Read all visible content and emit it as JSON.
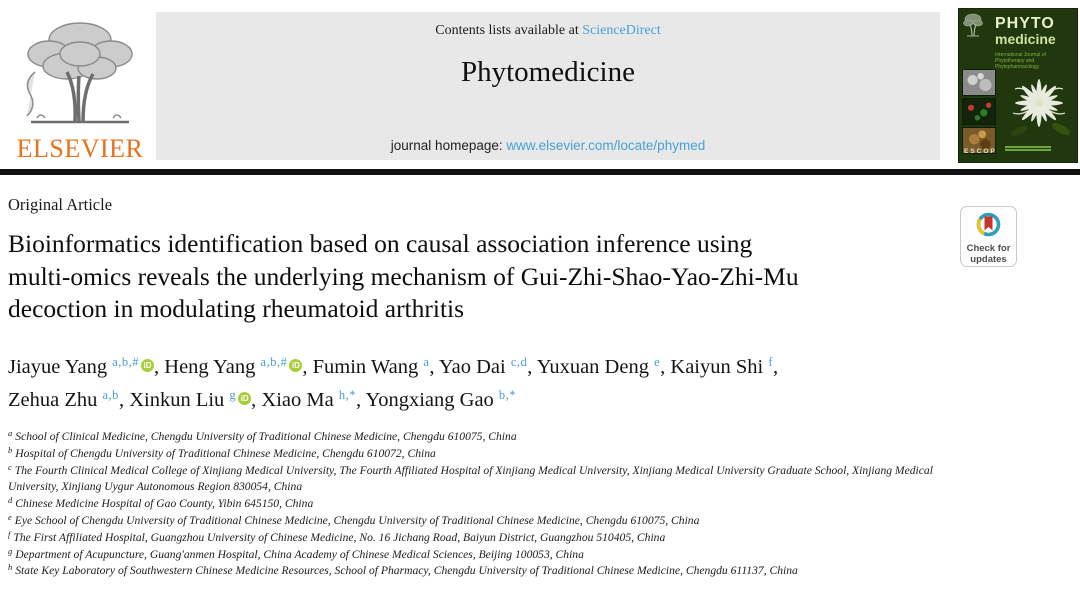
{
  "header": {
    "contents_prefix": "Contents lists available at ",
    "contents_link": "ScienceDirect",
    "journal_title": "Phytomedicine",
    "homepage_prefix": "journal homepage: ",
    "homepage_link": "www.elsevier.com/locate/phymed",
    "elsevier_wordmark": "ELSEVIER"
  },
  "cover": {
    "title_line1": "PHYTO",
    "title_line2": "medicine",
    "subtitle": "International Journal of Phytotherapy and Phytopharmacology",
    "footer": "ESCOP"
  },
  "article": {
    "type_label": "Original Article",
    "title_lines": [
      "Bioinformatics identification based on causal association inference using",
      "multi-omics reveals the underlying mechanism of Gui-Zhi-Shao-Yao-Zhi-Mu",
      "decoction in modulating rheumatoid arthritis"
    ],
    "badge_line1": "Check for",
    "badge_line2": "updates"
  },
  "authors": [
    {
      "name": "Jiayue Yang",
      "sup": "a,b,#",
      "orcid": true,
      "sep": ", "
    },
    {
      "name": "Heng Yang",
      "sup": "a,b,#",
      "orcid": true,
      "sep": ", "
    },
    {
      "name": "Fumin Wang",
      "sup": "a",
      "orcid": false,
      "sep": ", "
    },
    {
      "name": "Yao Dai",
      "sup": "c,d",
      "orcid": false,
      "sep": ", "
    },
    {
      "name": "Yuxuan Deng",
      "sup": "e",
      "orcid": false,
      "sep": ", "
    },
    {
      "name": "Kaiyun Shi",
      "sup": "f",
      "orcid": false,
      "sep": ",",
      "break_after": true
    },
    {
      "name": "Zehua Zhu",
      "sup": "a,b",
      "orcid": false,
      "sep": ", "
    },
    {
      "name": "Xinkun Liu",
      "sup": "g",
      "orcid": true,
      "sep": ", "
    },
    {
      "name": "Xiao Ma",
      "sup": "h,*",
      "orcid": false,
      "sep": ", "
    },
    {
      "name": "Yongxiang Gao",
      "sup": "b,*",
      "orcid": false,
      "sep": ""
    }
  ],
  "affiliations": [
    {
      "marker": "a",
      "text": "School of Clinical Medicine, Chengdu University of Traditional Chinese Medicine, Chengdu 610075, China"
    },
    {
      "marker": "b",
      "text": "Hospital of Chengdu University of Traditional Chinese Medicine, Chengdu 610072, China"
    },
    {
      "marker": "c",
      "text": "The Fourth Clinical Medical College of Xinjiang Medical University, The Fourth Affiliated Hospital of Xinjiang Medical University, Xinjiang Medical University Graduate School, Xinjiang Medical University, Xinjiang Uygur Autonomous Region 830054, China"
    },
    {
      "marker": "d",
      "text": "Chinese Medicine Hospital of Gao County, Yibin 645150, China"
    },
    {
      "marker": "e",
      "text": "Eye School of Chengdu University of Traditional Chinese Medicine, Chengdu University of Traditional Chinese Medicine, Chengdu 610075, China"
    },
    {
      "marker": "f",
      "text": "The First Affiliated Hospital, Guangzhou University of Chinese Medicine, No. 16 Jichang Road, Baiyun District, Guangzhou 510405, China"
    },
    {
      "marker": "g",
      "text": "Department of Acupuncture, Guang'anmen Hospital, China Academy of Chinese Medical Sciences, Beijing 100053, China"
    },
    {
      "marker": "h",
      "text": "State Key Laboratory of Southwestern Chinese Medicine Resources, School of Pharmacy, Chengdu University of Traditional Chinese Medicine, Chengdu 611137, China"
    }
  ],
  "colors": {
    "link_blue": "#45a1d8",
    "superscript_blue": "#4a9bd1",
    "elsevier_orange": "#e9711c",
    "orcid_green": "#a6ce39",
    "cover_green": "#21380f",
    "banner_gray": "#e8e8e8",
    "badge_ring_teal": "#2f9fbe",
    "badge_ring_yellow": "#e8c22a",
    "badge_bookmark_red": "#c8332e"
  }
}
